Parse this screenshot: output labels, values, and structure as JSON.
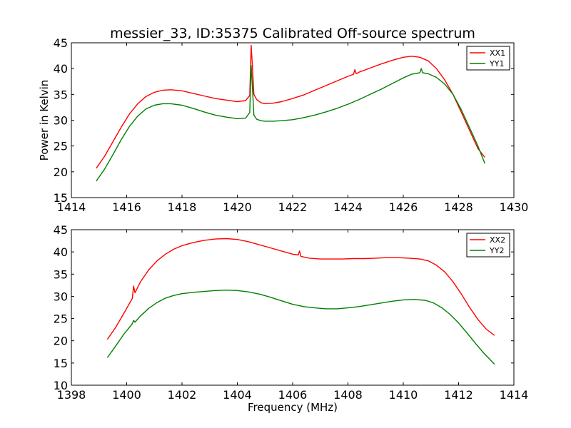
{
  "figure": {
    "title": "messier_33, ID:35375 Calibrated Off-source spectrum"
  },
  "chart_data": [
    {
      "type": "line",
      "title": "messier_33, ID:35375 Calibrated Off-source spectrum",
      "xlabel": "",
      "ylabel": "Power in Kelvin",
      "xlim": [
        1414,
        1430
      ],
      "ylim": [
        15,
        45
      ],
      "xticks": [
        "1414",
        "1416",
        "1418",
        "1420",
        "1422",
        "1424",
        "1426",
        "1428",
        "1430"
      ],
      "yticks": [
        "15",
        "20",
        "25",
        "30",
        "35",
        "40",
        "45"
      ],
      "legend": "top-right",
      "series": [
        {
          "name": "XX1",
          "color": "#ff0000",
          "x": [
            1414.9,
            1415.2,
            1415.5,
            1415.8,
            1416.1,
            1416.4,
            1416.7,
            1417.0,
            1417.3,
            1417.6,
            1418.0,
            1418.4,
            1418.8,
            1419.2,
            1419.6,
            1420.0,
            1420.3,
            1420.45,
            1420.5,
            1420.55,
            1420.6,
            1420.7,
            1420.85,
            1421.0,
            1421.3,
            1421.6,
            1422.0,
            1422.4,
            1422.8,
            1423.2,
            1423.6,
            1424.0,
            1424.2,
            1424.25,
            1424.3,
            1424.4,
            1424.8,
            1425.2,
            1425.6,
            1426.0,
            1426.3,
            1426.6,
            1426.9,
            1427.2,
            1427.5,
            1427.8,
            1428.1,
            1428.4,
            1428.7,
            1428.95
          ],
          "y": [
            20.7,
            23.0,
            25.8,
            28.6,
            31.2,
            33.2,
            34.6,
            35.4,
            35.8,
            35.9,
            35.7,
            35.2,
            34.7,
            34.2,
            33.9,
            33.6,
            33.8,
            34.8,
            44.5,
            40.0,
            35.0,
            34.0,
            33.4,
            33.2,
            33.3,
            33.6,
            34.2,
            34.9,
            35.8,
            36.7,
            37.6,
            38.5,
            38.9,
            39.8,
            39.0,
            39.3,
            40.1,
            40.9,
            41.6,
            42.2,
            42.4,
            42.2,
            41.5,
            40.0,
            37.8,
            35.0,
            31.5,
            28.0,
            24.5,
            22.8
          ]
        },
        {
          "name": "YY1",
          "color": "#008000",
          "x": [
            1414.9,
            1415.2,
            1415.5,
            1415.8,
            1416.1,
            1416.4,
            1416.7,
            1417.0,
            1417.3,
            1417.6,
            1418.0,
            1418.4,
            1418.8,
            1419.2,
            1419.6,
            1420.0,
            1420.3,
            1420.45,
            1420.5,
            1420.55,
            1420.6,
            1420.7,
            1420.85,
            1421.0,
            1421.3,
            1421.6,
            1422.0,
            1422.4,
            1422.8,
            1423.2,
            1423.6,
            1424.0,
            1424.4,
            1424.8,
            1425.2,
            1425.6,
            1426.0,
            1426.3,
            1426.6,
            1426.65,
            1426.7,
            1426.9,
            1427.2,
            1427.5,
            1427.8,
            1428.1,
            1428.4,
            1428.7,
            1428.95
          ],
          "y": [
            18.2,
            20.5,
            23.3,
            26.2,
            28.8,
            30.8,
            32.2,
            32.9,
            33.2,
            33.2,
            32.9,
            32.3,
            31.6,
            31.0,
            30.6,
            30.3,
            30.4,
            31.5,
            40.6,
            36.0,
            31.0,
            30.2,
            29.9,
            29.8,
            29.8,
            29.9,
            30.1,
            30.5,
            31.0,
            31.6,
            32.3,
            33.1,
            34.0,
            35.0,
            36.0,
            37.1,
            38.2,
            38.9,
            39.2,
            40.0,
            39.2,
            39.0,
            38.3,
            37.0,
            35.0,
            32.0,
            28.5,
            25.0,
            21.6
          ]
        }
      ]
    },
    {
      "type": "line",
      "title": "",
      "xlabel": "Frequency (MHz)",
      "ylabel": "",
      "xlim": [
        1398,
        1414
      ],
      "ylim": [
        10,
        45
      ],
      "xticks": [
        "1398",
        "1400",
        "1402",
        "1404",
        "1406",
        "1408",
        "1410",
        "1412",
        "1414"
      ],
      "yticks": [
        "10",
        "15",
        "20",
        "25",
        "30",
        "35",
        "40",
        "45"
      ],
      "legend": "top-right",
      "series": [
        {
          "name": "XX2",
          "color": "#ff0000",
          "x": [
            1399.3,
            1399.6,
            1399.9,
            1400.2,
            1400.25,
            1400.3,
            1400.5,
            1400.8,
            1401.1,
            1401.4,
            1401.7,
            1402.0,
            1402.4,
            1402.8,
            1403.2,
            1403.6,
            1404.0,
            1404.4,
            1404.8,
            1405.2,
            1405.6,
            1406.0,
            1406.2,
            1406.25,
            1406.3,
            1406.6,
            1407.0,
            1407.4,
            1407.8,
            1408.2,
            1408.6,
            1409.0,
            1409.4,
            1409.8,
            1410.2,
            1410.6,
            1410.9,
            1411.2,
            1411.5,
            1411.8,
            1412.1,
            1412.4,
            1412.7,
            1413.0,
            1413.3
          ],
          "y": [
            20.3,
            23.0,
            26.2,
            29.5,
            32.3,
            30.8,
            33.3,
            36.0,
            38.0,
            39.5,
            40.6,
            41.4,
            42.1,
            42.6,
            42.9,
            43.0,
            42.8,
            42.3,
            41.6,
            40.9,
            40.2,
            39.5,
            39.3,
            40.2,
            39.0,
            38.6,
            38.4,
            38.4,
            38.4,
            38.5,
            38.5,
            38.6,
            38.7,
            38.7,
            38.6,
            38.4,
            38.0,
            37.0,
            35.5,
            33.3,
            30.5,
            27.5,
            24.8,
            22.6,
            21.2
          ]
        },
        {
          "name": "YY2",
          "color": "#008000",
          "x": [
            1399.3,
            1399.6,
            1399.9,
            1400.2,
            1400.25,
            1400.3,
            1400.5,
            1400.8,
            1401.1,
            1401.4,
            1401.7,
            1402.0,
            1402.4,
            1402.8,
            1403.2,
            1403.6,
            1404.0,
            1404.4,
            1404.8,
            1405.2,
            1405.6,
            1406.0,
            1406.4,
            1406.8,
            1407.2,
            1407.6,
            1408.0,
            1408.4,
            1408.8,
            1409.2,
            1409.6,
            1410.0,
            1410.4,
            1410.8,
            1411.1,
            1411.4,
            1411.7,
            1412.0,
            1412.3,
            1412.6,
            1412.9,
            1413.3
          ],
          "y": [
            16.2,
            18.8,
            21.5,
            23.8,
            24.6,
            24.2,
            25.6,
            27.3,
            28.6,
            29.6,
            30.2,
            30.6,
            30.9,
            31.1,
            31.3,
            31.4,
            31.3,
            31.0,
            30.5,
            29.8,
            29.0,
            28.2,
            27.7,
            27.4,
            27.2,
            27.2,
            27.4,
            27.7,
            28.1,
            28.5,
            28.9,
            29.2,
            29.3,
            29.1,
            28.5,
            27.4,
            25.9,
            24.0,
            21.8,
            19.5,
            17.3,
            14.7
          ]
        }
      ]
    }
  ]
}
